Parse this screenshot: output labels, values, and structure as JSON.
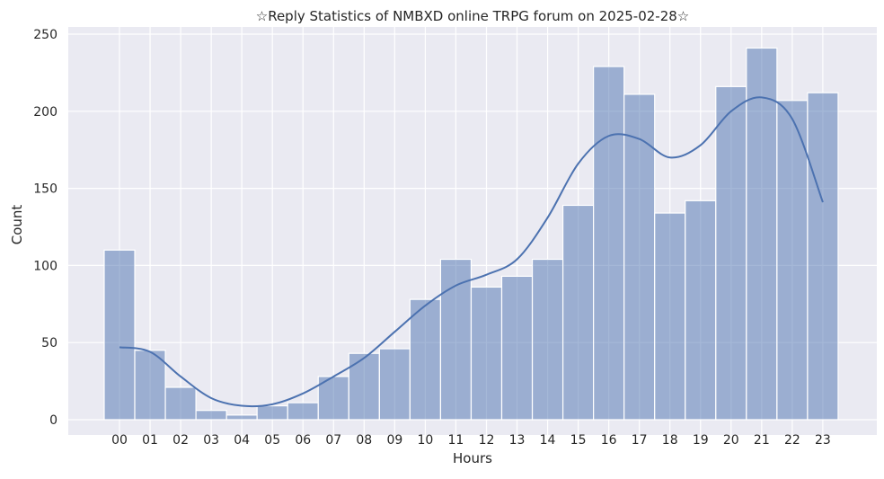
{
  "chart_data": {
    "type": "bar",
    "title": "☆Reply Statistics of NMBXD online TRPG forum on 2025-02-28☆",
    "xlabel": "Hours",
    "ylabel": "Count",
    "categories": [
      "00",
      "01",
      "02",
      "03",
      "04",
      "05",
      "06",
      "07",
      "08",
      "09",
      "10",
      "11",
      "12",
      "13",
      "14",
      "15",
      "16",
      "17",
      "18",
      "19",
      "20",
      "21",
      "22",
      "23"
    ],
    "values": [
      110,
      45,
      21,
      6,
      3,
      9,
      11,
      28,
      43,
      46,
      78,
      104,
      86,
      93,
      104,
      139,
      229,
      211,
      134,
      142,
      216,
      241,
      207,
      212
    ],
    "kde": [
      47,
      44,
      28,
      14,
      9,
      10,
      17,
      28,
      40,
      57,
      74,
      87,
      94,
      104,
      131,
      166,
      184,
      182,
      170,
      178,
      200,
      209,
      195,
      141
    ],
    "ylim": [
      0,
      250
    ],
    "yticks": [
      0,
      50,
      100,
      150,
      200,
      250
    ],
    "grid": true,
    "colors": {
      "bar": "#4C72B0",
      "background": "#EAEAF2",
      "line": "#4C72B0"
    }
  }
}
